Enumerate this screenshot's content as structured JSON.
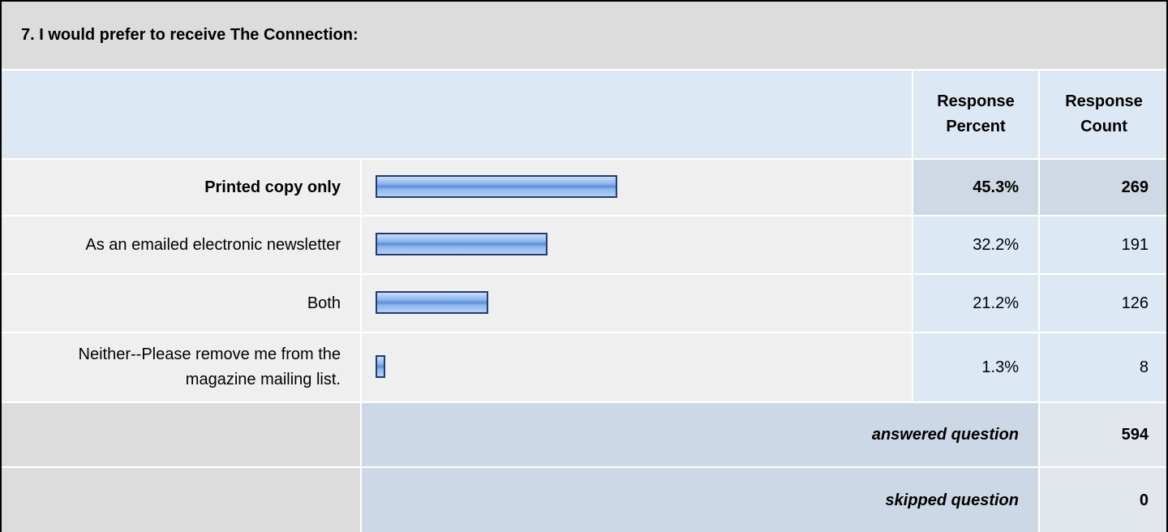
{
  "title": "7. I would prefer to receive The Connection:",
  "header": {
    "percent": "Response Percent",
    "count": "Response Count"
  },
  "rows": [
    {
      "label": "Printed copy only",
      "percent": 45.3,
      "percent_label": "45.3%",
      "count": 269
    },
    {
      "label": "As an emailed electronic newsletter",
      "percent": 32.2,
      "percent_label": "32.2%",
      "count": 191
    },
    {
      "label": "Both",
      "percent": 21.2,
      "percent_label": "21.2%",
      "count": 126
    },
    {
      "label": "Neither--Please remove me from the magazine mailing list.",
      "percent": 1.3,
      "percent_label": "1.3%",
      "count": 8
    }
  ],
  "summary": [
    {
      "label": "answered question",
      "count": 594
    },
    {
      "label": "skipped question",
      "count": 0
    }
  ]
}
